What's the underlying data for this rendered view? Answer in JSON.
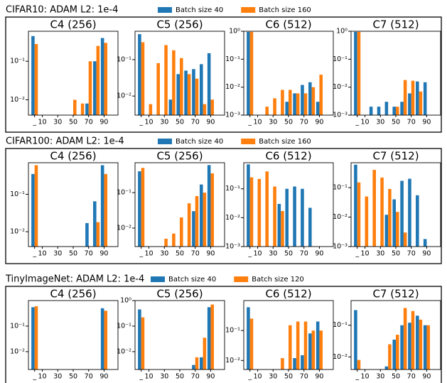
{
  "chart_data": [
    {
      "type": "bar",
      "title": "CIFAR10: ADAM L2: 1e-4",
      "log_scale": true,
      "categories": [
        "_",
        "10",
        null,
        "30",
        null,
        "50",
        null,
        "70",
        null,
        "90",
        null
      ],
      "series": [
        {
          "name": "Batch size 40",
          "color": "#1f77b4"
        },
        {
          "name": "Batch size 160",
          "color": "#ff7f0e"
        }
      ],
      "panels": [
        {
          "title": "C4 (256)",
          "ylim": [
            0.004,
            0.6
          ],
          "yticks": [
            {
              "value": 0.1,
              "label": "10⁻¹"
            },
            {
              "value": 0.01,
              "label": "10⁻²"
            }
          ],
          "series": [
            {
              "values": [
                0.45,
                null,
                null,
                null,
                null,
                null,
                null,
                0.008,
                0.1,
                0.4,
                null
              ]
            },
            {
              "values": [
                0.28,
                null,
                null,
                null,
                null,
                0.01,
                0.008,
                0.1,
                0.25,
                0.3,
                null
              ]
            }
          ]
        },
        {
          "title": "C5 (256)",
          "ylim": [
            0.003,
            0.6
          ],
          "yticks": [
            {
              "value": 0.1,
              "label": "10⁻¹"
            },
            {
              "value": 0.01,
              "label": "10⁻²"
            }
          ],
          "series": [
            {
              "values": [
                0.5,
                null,
                null,
                null,
                0.008,
                0.04,
                0.05,
                0.055,
                0.075,
                0.15,
                null
              ]
            },
            {
              "values": [
                0.3,
                0.006,
                0.08,
                0.25,
                0.18,
                0.11,
                0.04,
                0.03,
                0.006,
                0.008,
                null
              ]
            }
          ]
        },
        {
          "title": "C6 (512)",
          "ylim": [
            0.001,
            1
          ],
          "yticks": [
            {
              "value": 1,
              "label": "10⁰"
            },
            {
              "value": 0.1,
              "label": "10⁻¹"
            },
            {
              "value": 0.01,
              "label": "10⁻²"
            },
            {
              "value": 0.001,
              "label": "10⁻³"
            }
          ],
          "series": [
            {
              "values": [
                0.95,
                null,
                null,
                null,
                null,
                0.003,
                0.006,
                0.012,
                0.015,
                0.003,
                null
              ]
            },
            {
              "values": [
                0.95,
                null,
                0.002,
                0.004,
                0.008,
                0.008,
                0.006,
                0.006,
                0.01,
                0.028,
                null
              ]
            }
          ]
        },
        {
          "title": "C7 (512)",
          "ylim": [
            0.001,
            1
          ],
          "yticks": [
            {
              "value": 1,
              "label": "10⁰"
            },
            {
              "value": 0.1,
              "label": "10⁻¹"
            },
            {
              "value": 0.01,
              "label": "10⁻²"
            },
            {
              "value": 0.001,
              "label": "10⁻³"
            }
          ],
          "series": [
            {
              "values": [
                0.95,
                null,
                0.002,
                0.002,
                0.003,
                0.002,
                0.003,
                0.006,
                0.016,
                0.015,
                null
              ]
            },
            {
              "values": [
                0.95,
                null,
                null,
                null,
                null,
                0.002,
                0.018,
                0.017,
                0.007,
                null,
                null
              ]
            }
          ]
        }
      ]
    },
    {
      "type": "bar",
      "title": "CIFAR100: ADAM L2: 1e-4",
      "log_scale": true,
      "categories": [
        "_",
        "10",
        null,
        "30",
        null,
        "50",
        null,
        "70",
        null,
        "90",
        null
      ],
      "series": [
        {
          "name": "Batch size 40",
          "color": "#1f77b4"
        },
        {
          "name": "Batch size 160",
          "color": "#ff7f0e"
        }
      ],
      "panels": [
        {
          "title": "C4 (256)",
          "ylim": [
            0.004,
            0.7
          ],
          "yticks": [
            {
              "value": 0.1,
              "label": "10⁻¹"
            },
            {
              "value": 0.01,
              "label": "10⁻²"
            }
          ],
          "series": [
            {
              "values": [
                0.35,
                null,
                null,
                null,
                null,
                null,
                null,
                0.017,
                0.065,
                0.6,
                null
              ]
            },
            {
              "values": [
                0.6,
                null,
                null,
                null,
                null,
                null,
                null,
                null,
                0.018,
                0.35,
                null
              ]
            }
          ]
        },
        {
          "title": "C5 (256)",
          "ylim": [
            0.003,
            0.7
          ],
          "yticks": [
            {
              "value": 0.1,
              "label": "10⁻¹"
            },
            {
              "value": 0.01,
              "label": "10⁻²"
            }
          ],
          "series": [
            {
              "values": [
                0.4,
                null,
                null,
                null,
                null,
                null,
                null,
                0.03,
                0.17,
                0.6,
                null
              ]
            },
            {
              "values": [
                0.5,
                null,
                0.003,
                0.005,
                0.007,
                0.02,
                0.05,
                0.08,
                0.1,
                0.35,
                null
              ]
            }
          ]
        },
        {
          "title": "C6 (512)",
          "ylim": [
            0.001,
            0.8
          ],
          "yticks": [
            {
              "value": 0.1,
              "label": "10⁻¹"
            },
            {
              "value": 0.01,
              "label": "10⁻²"
            },
            {
              "value": 0.001,
              "label": "10⁻³"
            }
          ],
          "series": [
            {
              "values": [
                0.7,
                null,
                null,
                null,
                0.03,
                0.1,
                0.12,
                0.1,
                0.022,
                null,
                null
              ]
            },
            {
              "values": [
                0.25,
                0.22,
                0.4,
                0.12,
                0.017,
                null,
                null,
                null,
                null,
                null,
                null
              ]
            }
          ]
        },
        {
          "title": "C7 (512)",
          "ylim": [
            0.001,
            0.7
          ],
          "yticks": [
            {
              "value": 0.1,
              "label": "10⁻¹"
            },
            {
              "value": 0.01,
              "label": "10⁻²"
            },
            {
              "value": 0.001,
              "label": "10⁻³"
            }
          ],
          "series": [
            {
              "values": [
                0.6,
                null,
                null,
                null,
                0.012,
                0.04,
                0.17,
                0.2,
                0.055,
                0.0018,
                null
              ]
            },
            {
              "values": [
                0.15,
                0.05,
                0.4,
                0.22,
                0.09,
                0.015,
                0.003,
                null,
                null,
                null,
                null
              ]
            }
          ]
        }
      ]
    },
    {
      "type": "bar",
      "title": "TinyImageNet: ADAM L2: 1e-4",
      "log_scale": true,
      "categories": [
        "_",
        "10",
        null,
        "30",
        null,
        "50",
        null,
        "70",
        null,
        "90",
        null
      ],
      "series": [
        {
          "name": "Batch size 40",
          "color": "#1f77b4"
        },
        {
          "name": "Batch size 120",
          "color": "#ff7f0e"
        }
      ],
      "panels": [
        {
          "title": "C4 (256)",
          "ylim": [
            0.002,
            1
          ],
          "yticks": [
            {
              "value": 0.1,
              "label": "10⁻¹"
            },
            {
              "value": 0.01,
              "label": "10⁻²"
            }
          ],
          "series": [
            {
              "values": [
                0.55,
                null,
                null,
                null,
                null,
                null,
                null,
                null,
                0.002,
                0.5,
                null
              ]
            },
            {
              "values": [
                0.6,
                null,
                null,
                null,
                null,
                null,
                null,
                null,
                null,
                0.4,
                null
              ]
            }
          ]
        },
        {
          "title": "C5 (256)",
          "ylim": [
            0.002,
            1
          ],
          "yticks": [
            {
              "value": 1,
              "label": "10⁰"
            },
            {
              "value": 0.1,
              "label": "10⁻¹"
            },
            {
              "value": 0.01,
              "label": "10⁻²"
            }
          ],
          "series": [
            {
              "values": [
                0.45,
                null,
                null,
                null,
                null,
                null,
                null,
                0.003,
                0.006,
                0.55,
                null
              ]
            },
            {
              "values": [
                0.22,
                null,
                null,
                null,
                null,
                null,
                null,
                0.006,
                0.035,
                0.7,
                null
              ]
            }
          ]
        },
        {
          "title": "C6 (512)",
          "ylim": [
            0.005,
            1
          ],
          "yticks": [
            {
              "value": 0.1,
              "label": "10⁻¹"
            },
            {
              "value": 0.01,
              "label": "10⁻²"
            }
          ],
          "series": [
            {
              "values": [
                0.6,
                null,
                null,
                null,
                null,
                null,
                0.012,
                0.015,
                0.08,
                0.2,
                null
              ]
            },
            {
              "values": [
                0.25,
                null,
                null,
                null,
                0.012,
                0.15,
                0.2,
                0.2,
                0.1,
                0.1,
                null
              ]
            }
          ]
        },
        {
          "title": "C7 (512)",
          "ylim": [
            0.004,
            0.6
          ],
          "yticks": [
            {
              "value": 0.1,
              "label": "10⁻¹"
            },
            {
              "value": 0.01,
              "label": "10⁻²"
            }
          ],
          "series": [
            {
              "values": [
                0.3,
                null,
                null,
                null,
                0.005,
                0.035,
                0.1,
                0.12,
                0.2,
                0.1,
                null
              ]
            },
            {
              "values": [
                0.008,
                null,
                null,
                null,
                0.025,
                0.05,
                0.35,
                0.28,
                0.15,
                0.1,
                null
              ]
            }
          ]
        }
      ]
    }
  ]
}
